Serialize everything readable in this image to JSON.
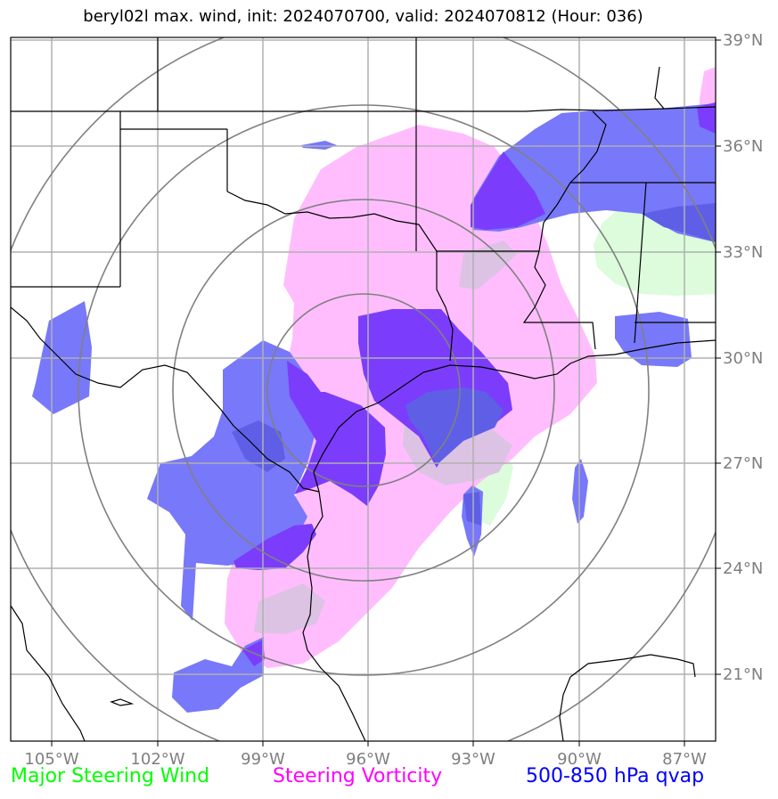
{
  "title": "beryl02l max. wind, init: 2024070700, valid: 2024070812 (Hour: 036)",
  "legend": [
    {
      "label": "Major Steering Wind",
      "color": "#00ff00"
    },
    {
      "label": "Steering Vorticity",
      "color": "#ff00ff"
    },
    {
      "label": "500-850 hPa qvap",
      "color": "#0000ff"
    }
  ],
  "lon_labels": [
    "105°W",
    "102°W",
    "99°W",
    "96°W",
    "93°W",
    "90°W",
    "87°W"
  ],
  "lat_labels": [
    "39°N",
    "36°N",
    "33°N",
    "30°N",
    "27°N",
    "24°N",
    "21°N"
  ],
  "colors": {
    "wind_fill": "#dcfcdc",
    "vorticity_fill": "#ffbdfd",
    "qvap_fill": "#7878fa",
    "qvap_dense": "#7b3dfb",
    "overlap_fill": "#5e5fe6",
    "grid": "#b0b0b0",
    "range_rings": "#808080",
    "tick_labels": "#7f7f7f"
  }
}
